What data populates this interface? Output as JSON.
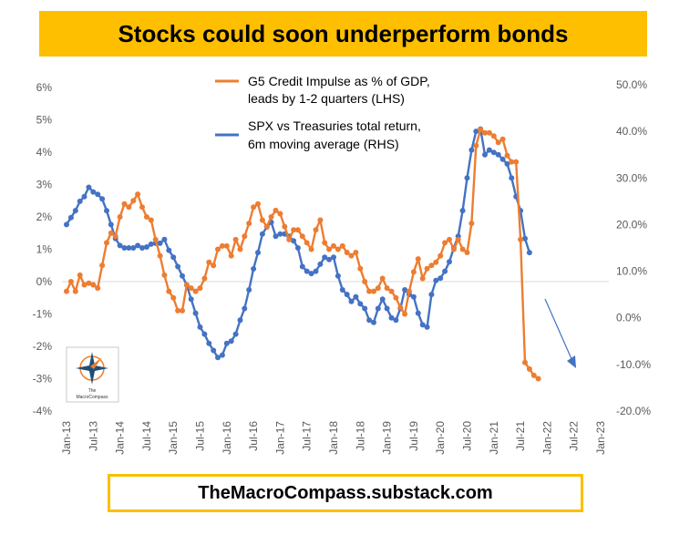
{
  "title": "Stocks could soon underperform bonds",
  "footer": "TheMacroCompass.substack.com",
  "logo": {
    "small_text": "The",
    "name": "MacroCompass"
  },
  "colors": {
    "banner": "#fdbf00",
    "orange": "#ed7d31",
    "blue": "#4472c4",
    "arrow": "#4472c4"
  },
  "chart_data": {
    "type": "line",
    "title": "Stocks could soon underperform bonds",
    "x_ticks": [
      "Jan-13",
      "Jul-13",
      "Jan-14",
      "Jul-14",
      "Jan-15",
      "Jul-15",
      "Jan-16",
      "Jul-16",
      "Jan-17",
      "Jul-17",
      "Jan-18",
      "Jul-18",
      "Jan-19",
      "Jul-19",
      "Jan-20",
      "Jul-20",
      "Jan-21",
      "Jul-21",
      "Jan-22",
      "Jul-22",
      "Jan-23"
    ],
    "y_left": {
      "range": [
        -4,
        6
      ],
      "ticks": [
        "-4%",
        "-3%",
        "-2%",
        "-1%",
        "0%",
        "1%",
        "2%",
        "3%",
        "4%",
        "5%",
        "6%"
      ]
    },
    "y_right": {
      "range": [
        -20,
        50
      ],
      "ticks": [
        "-20.0%",
        "-10.0%",
        "0.0%",
        "10.0%",
        "20.0%",
        "30.0%",
        "40.0%",
        "50.0%"
      ]
    },
    "legend": [
      {
        "line1": "G5 Credit Impulse as % of GDP,",
        "line2": "leads by 1-2 quarters (LHS)"
      },
      {
        "line1": "SPX vs Treasuries total return,",
        "line2": "6m moving average (RHS)"
      }
    ],
    "series": [
      {
        "name": "G5 Credit Impulse as % of GDP, leads by 1-2 quarters",
        "axis": "left",
        "unit": "%",
        "start": "Jan-13",
        "values": [
          -0.3,
          0.0,
          -0.3,
          0.2,
          -0.1,
          -0.05,
          -0.1,
          -0.2,
          0.5,
          1.2,
          1.5,
          1.4,
          2.0,
          2.4,
          2.3,
          2.5,
          2.7,
          2.3,
          2.0,
          1.9,
          1.3,
          0.8,
          0.2,
          -0.3,
          -0.5,
          -0.9,
          -0.9,
          -0.1,
          -0.2,
          -0.3,
          -0.2,
          0.1,
          0.6,
          0.5,
          1.0,
          1.1,
          1.1,
          0.8,
          1.3,
          1.0,
          1.4,
          1.8,
          2.3,
          2.4,
          1.9,
          1.7,
          2.0,
          2.2,
          2.1,
          1.7,
          1.3,
          1.6,
          1.6,
          1.4,
          1.2,
          1.0,
          1.6,
          1.9,
          1.2,
          1.0,
          1.1,
          1.0,
          1.1,
          0.9,
          0.8,
          0.9,
          0.4,
          0.0,
          -0.3,
          -0.3,
          -0.2,
          0.1,
          -0.2,
          -0.3,
          -0.5,
          -0.8,
          -1.0,
          -0.3,
          0.3,
          0.7,
          0.1,
          0.4,
          0.5,
          0.6,
          0.8,
          1.2,
          1.3,
          1.0,
          1.3,
          1.0,
          0.9,
          1.8,
          4.2,
          4.7,
          4.6,
          4.6,
          4.5,
          4.3,
          4.4,
          3.9,
          3.7,
          3.7,
          1.3,
          -2.5,
          -2.7,
          -2.9,
          -3.0
        ]
      },
      {
        "name": "SPX vs Treasuries total return, 6m moving average",
        "axis": "right",
        "unit": "%",
        "start": "Jan-13",
        "values": [
          20.0,
          21.5,
          23.0,
          25.0,
          26.0,
          28.0,
          27.0,
          26.5,
          25.5,
          23.0,
          20.0,
          17.0,
          15.5,
          15.0,
          15.0,
          15.0,
          15.5,
          15.0,
          15.2,
          15.8,
          16.0,
          16.0,
          16.8,
          14.5,
          13.0,
          11.0,
          9.0,
          7.0,
          4.0,
          1.0,
          -2.0,
          -3.5,
          -5.5,
          -7.0,
          -8.5,
          -8.0,
          -5.5,
          -5.0,
          -3.5,
          -0.5,
          2.0,
          6.0,
          10.5,
          14.0,
          18.0,
          19.5,
          20.5,
          17.5,
          18.0,
          18.0,
          17.5,
          16.5,
          15.0,
          11.0,
          10.0,
          9.5,
          10.0,
          11.5,
          13.0,
          12.5,
          13.0,
          9.0,
          6.0,
          5.0,
          3.5,
          4.5,
          3.0,
          2.0,
          -0.5,
          -1.0,
          2.0,
          4.0,
          2.0,
          0.0,
          -0.5,
          2.0,
          6.0,
          5.0,
          4.5,
          1.0,
          -1.5,
          -2.0,
          5.0,
          8.0,
          8.5,
          10.0,
          12.0,
          15.0,
          17.5,
          23.0,
          30.0,
          36.0,
          40.0,
          40.5,
          35.0,
          36.0,
          35.5,
          35.0,
          34.0,
          33.0,
          30.0,
          26.0,
          23.0,
          17.0,
          14.0
        ]
      }
    ]
  }
}
